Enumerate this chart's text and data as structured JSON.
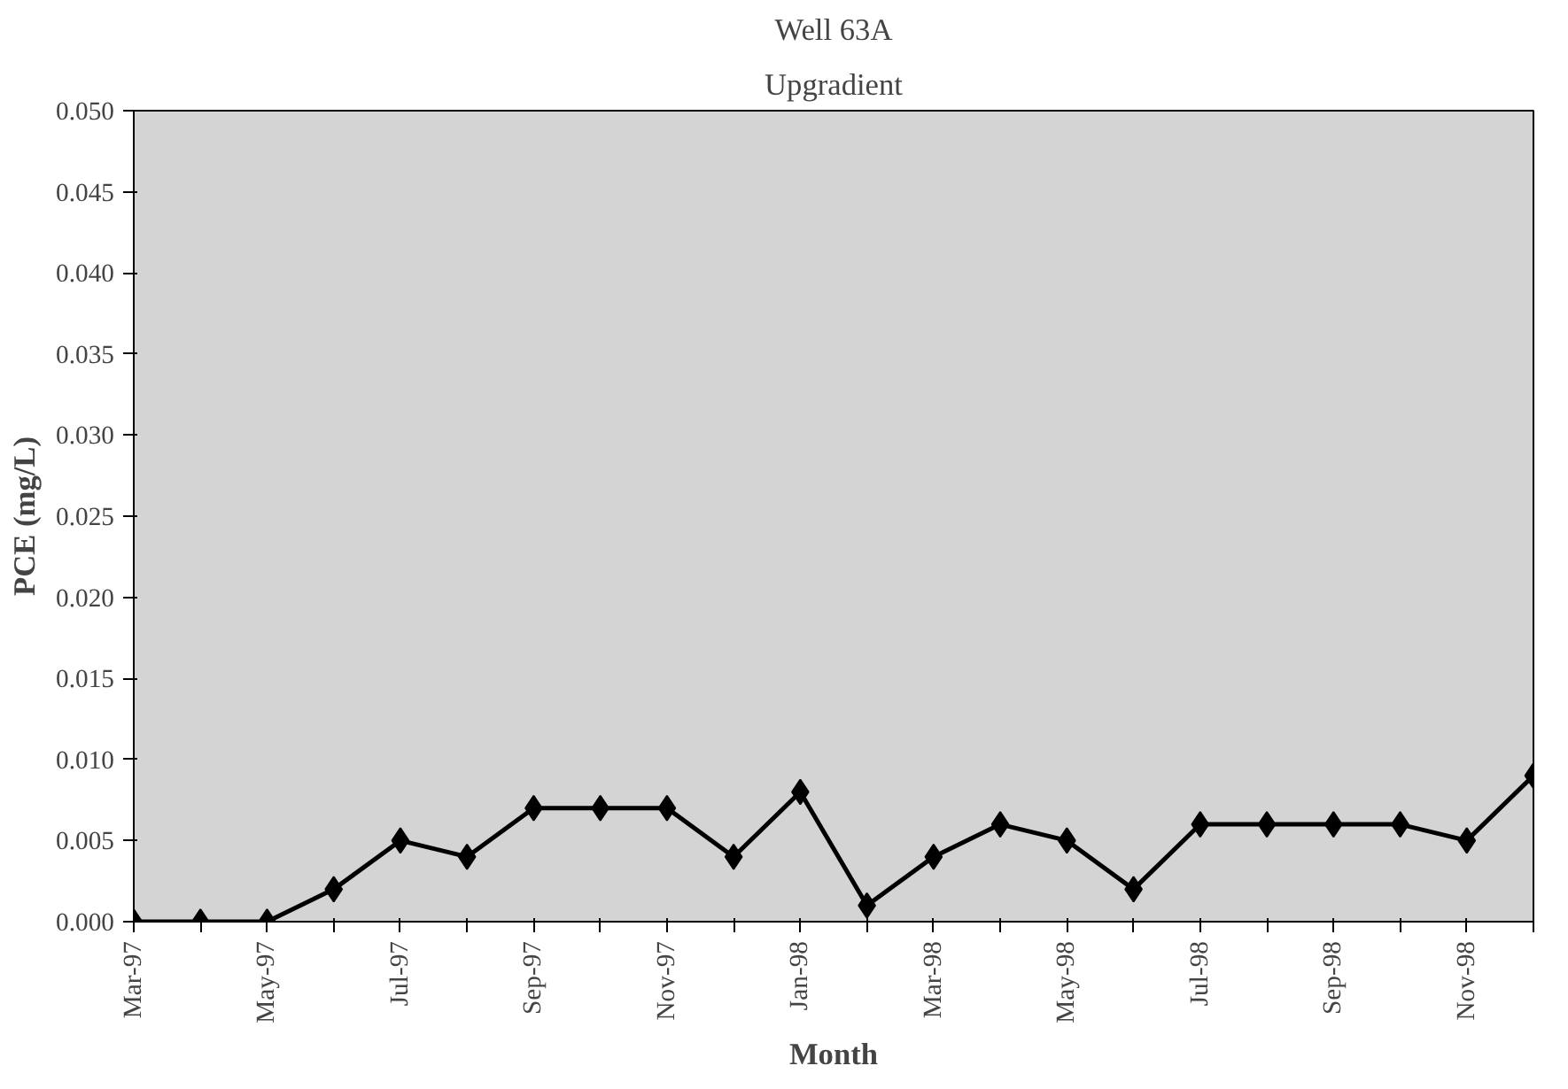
{
  "chart_data": {
    "type": "line",
    "title": "Well 63A",
    "subtitle": "Upgradient",
    "xlabel": "Month",
    "ylabel": "PCE (mg/L)",
    "categories": [
      "Mar-97",
      null,
      "May-97",
      null,
      "Jul-97",
      null,
      "Sep-97",
      null,
      "Nov-97",
      null,
      "Jan-98",
      null,
      "Mar-98",
      null,
      "May-98",
      null,
      "Jul-98",
      null,
      "Sep-98",
      null,
      "Nov-98",
      null
    ],
    "series": [
      {
        "color": "#000000",
        "values": [
          0,
          0,
          0,
          0.002,
          0.005,
          0.004,
          0.007,
          0.007,
          0.007,
          0.004,
          0.008,
          0.001,
          0.004,
          0.006,
          0.005,
          0.002,
          0.006,
          0.006,
          0.006,
          0.006,
          0.005,
          0.009
        ]
      }
    ],
    "ylim": [
      0,
      0.05
    ],
    "yticks": [
      {
        "value": 0,
        "label": "0.000"
      },
      {
        "value": 0.005,
        "label": "0.005"
      },
      {
        "value": 0.01,
        "label": "0.010"
      },
      {
        "value": 0.015,
        "label": "0.015"
      },
      {
        "value": 0.02,
        "label": "0.020"
      },
      {
        "value": 0.025,
        "label": "0.025"
      },
      {
        "value": 0.03,
        "label": "0.030"
      },
      {
        "value": 0.035,
        "label": "0.035"
      },
      {
        "value": 0.04,
        "label": "0.040"
      },
      {
        "value": 0.045,
        "label": "0.045"
      },
      {
        "value": 0.05,
        "label": "0.050"
      }
    ],
    "marker": "diamond",
    "line_style": "solid",
    "grid": false
  }
}
